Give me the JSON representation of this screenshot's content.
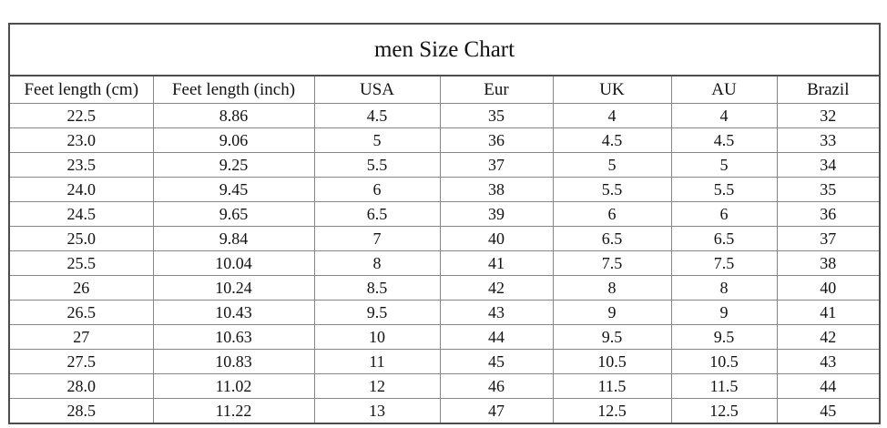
{
  "table": {
    "title": "men Size Chart",
    "headers": [
      "Feet length (cm)",
      "Feet length (inch)",
      "USA",
      "Eur",
      "UK",
      "AU",
      "Brazil"
    ],
    "rows": [
      [
        "22.5",
        "8.86",
        "4.5",
        "35",
        "4",
        "4",
        "32"
      ],
      [
        "23.0",
        "9.06",
        "5",
        "36",
        "4.5",
        "4.5",
        "33"
      ],
      [
        "23.5",
        "9.25",
        "5.5",
        "37",
        "5",
        "5",
        "34"
      ],
      [
        "24.0",
        "9.45",
        "6",
        "38",
        "5.5",
        "5.5",
        "35"
      ],
      [
        "24.5",
        "9.65",
        "6.5",
        "39",
        "6",
        "6",
        "36"
      ],
      [
        "25.0",
        "9.84",
        "7",
        "40",
        "6.5",
        "6.5",
        "37"
      ],
      [
        "25.5",
        "10.04",
        "8",
        "41",
        "7.5",
        "7.5",
        "38"
      ],
      [
        "26",
        "10.24",
        "8.5",
        "42",
        "8",
        "8",
        "40"
      ],
      [
        "26.5",
        "10.43",
        "9.5",
        "43",
        "9",
        "9",
        "41"
      ],
      [
        "27",
        "10.63",
        "10",
        "44",
        "9.5",
        "9.5",
        "42"
      ],
      [
        "27.5",
        "10.83",
        "11",
        "45",
        "10.5",
        "10.5",
        "43"
      ],
      [
        "28.0",
        "11.02",
        "12",
        "46",
        "11.5",
        "11.5",
        "44"
      ],
      [
        "28.5",
        "11.22",
        "13",
        "47",
        "12.5",
        "12.5",
        "45"
      ]
    ]
  },
  "colors": {
    "background": "#ffffff",
    "text": "#121212",
    "outer_border": "#4d4d4d",
    "inner_border": "#868686"
  }
}
